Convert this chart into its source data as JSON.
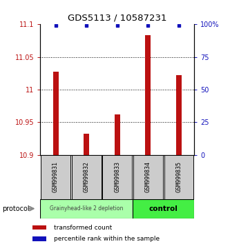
{
  "title": "GDS5113 / 10587231",
  "samples": [
    "GSM999831",
    "GSM999832",
    "GSM999833",
    "GSM999834",
    "GSM999835"
  ],
  "red_values": [
    11.028,
    10.932,
    10.962,
    11.083,
    11.022
  ],
  "blue_values": [
    99,
    99,
    99,
    99,
    99
  ],
  "ylim_left": [
    10.9,
    11.1
  ],
  "ylim_right": [
    0,
    100
  ],
  "yticks_left": [
    10.9,
    10.95,
    11.0,
    11.05,
    11.1
  ],
  "ytick_labels_left": [
    "10.9",
    "10.95",
    "11",
    "11.05",
    "11.1"
  ],
  "yticks_right": [
    0,
    25,
    50,
    75,
    100
  ],
  "ytick_labels_right": [
    "0",
    "25",
    "50",
    "75",
    "100%"
  ],
  "bar_color": "#bb1111",
  "dot_color": "#1111bb",
  "label_bg": "#cccccc",
  "group1_color": "#aaffaa",
  "group2_color": "#44ee44",
  "group1_label": "Grainyhead-like 2 depletion",
  "group2_label": "control",
  "legend_red_label": "transformed count",
  "legend_blue_label": "percentile rank within the sample",
  "protocol_label": "protocol",
  "title_fontsize": 9.5,
  "tick_fontsize": 7,
  "sample_fontsize": 6,
  "group_fontsize": 5.5,
  "legend_fontsize": 6.5
}
